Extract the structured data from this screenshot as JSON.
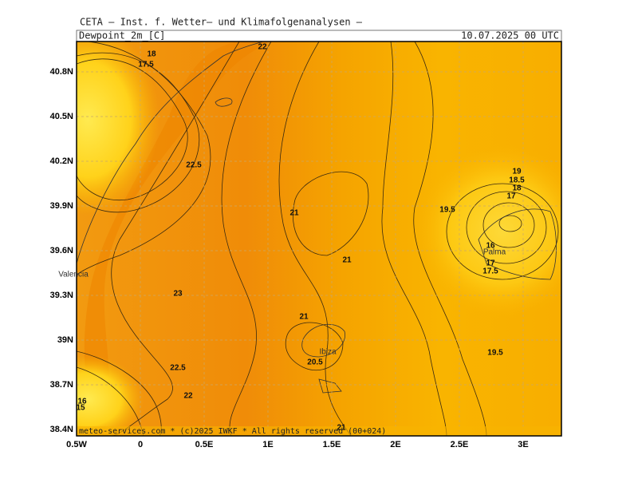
{
  "header": {
    "title": "CETA – Inst. f. Wetter– und Klimafolgenanalysen –",
    "variable": "Dewpoint_2m_[C]",
    "datetime": "10.07.2025 00 UTC"
  },
  "map": {
    "lat_ticks": [
      "40.8N",
      "40.5N",
      "40.2N",
      "39.9N",
      "39.6N",
      "39.3N",
      "39N",
      "38.7N",
      "38.4N"
    ],
    "lon_ticks": [
      "0.5W",
      "0",
      "0.5E",
      "1E",
      "1.5E",
      "2E",
      "2.5E",
      "3E"
    ],
    "places": [
      "Valencia",
      "Ibiza",
      "Palma"
    ],
    "contour_labels": [
      "18",
      "17.5",
      "22",
      "22.5",
      "21",
      "21",
      "19.5",
      "19",
      "18.5",
      "18",
      "17",
      "16",
      "17",
      "17.5",
      "23",
      "21",
      "20.5",
      "22.5",
      "22",
      "16",
      "15",
      "21",
      "19.5"
    ]
  },
  "footer": "meteo-services.com * (c)2025 IWKF * All rights reserved (00+024)"
}
